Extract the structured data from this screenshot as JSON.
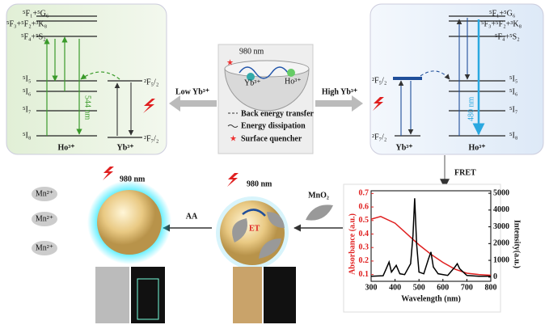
{
  "left_panel": {
    "levels": [
      "⁵F₁+⁵G₆",
      "⁵F₃+⁵F₂+³K₈",
      "⁵F₄+⁵S₂",
      "⁵I₅",
      "⁵I₆",
      "⁵I₇",
      "⁵I₈",
      "²F₅/₂",
      "²F₇/₂"
    ],
    "ion_labels": [
      "Ho³⁺",
      "Yb³⁺"
    ],
    "emission": "544 nm"
  },
  "right_panel": {
    "levels": [
      "⁵F₁+⁵G₆",
      "⁵F₃+⁵F₂+³K₈",
      "⁵F₄+⁵S₂",
      "⁵I₅",
      "⁵I₆",
      "⁵I₇",
      "⁵I₈",
      "²F₅/₂",
      "²F₇/₂"
    ],
    "ion_labels": [
      "Yb³⁺",
      "Ho³⁺"
    ],
    "emission": "480 nm"
  },
  "center": {
    "excitation": "980 nm",
    "yb": "Yb³⁺",
    "ho": "Ho³⁺",
    "legend": [
      "Back energy transfer",
      "Energy dissipation",
      "Surface quencher"
    ]
  },
  "arrows": {
    "low": "Low Yb³⁺",
    "high": "High Yb³⁺",
    "fret": "FRET",
    "aa": "AA",
    "mno2": "MnO₂"
  },
  "bottom": {
    "left_excitation": "980 nm",
    "mn": [
      "Mn²⁺",
      "Mn²⁺",
      "Mn²⁺"
    ],
    "mid_excitation": "980 nm",
    "et": "ET"
  },
  "chart_data": {
    "type": "line",
    "xlabel": "Wavelength (nm)",
    "ylabel": "Absorbance (a.u.)",
    "y2label": "Intensity(a.u.)",
    "xlim": [
      300,
      800
    ],
    "xticks": [
      300,
      400,
      500,
      600,
      700,
      800
    ],
    "ylim": [
      0.05,
      0.72
    ],
    "yticks": [
      0.1,
      0.2,
      0.3,
      0.4,
      0.5,
      0.6,
      0.7
    ],
    "y2lim": [
      -250,
      5150
    ],
    "y2ticks": [
      0,
      1000,
      2000,
      3000,
      4000,
      5000
    ],
    "series": [
      {
        "name": "Absorbance",
        "color": "#e02020",
        "x": [
          300,
          340,
          400,
          450,
          500,
          550,
          600,
          650,
          700,
          750,
          800
        ],
        "values": [
          0.51,
          0.53,
          0.48,
          0.4,
          0.32,
          0.25,
          0.19,
          0.14,
          0.11,
          0.1,
          0.095
        ]
      },
      {
        "name": "Intensity",
        "color": "#000000",
        "axis": "y2",
        "x": [
          300,
          350,
          360,
          375,
          385,
          405,
          420,
          440,
          465,
          475,
          482,
          490,
          500,
          520,
          540,
          550,
          560,
          580,
          620,
          650,
          660,
          670,
          700,
          750,
          800
        ],
        "values": [
          50,
          80,
          400,
          900,
          300,
          700,
          200,
          150,
          800,
          2500,
          4700,
          2000,
          300,
          200,
          1100,
          1500,
          600,
          200,
          100,
          600,
          800,
          500,
          100,
          50,
          50
        ]
      }
    ]
  }
}
